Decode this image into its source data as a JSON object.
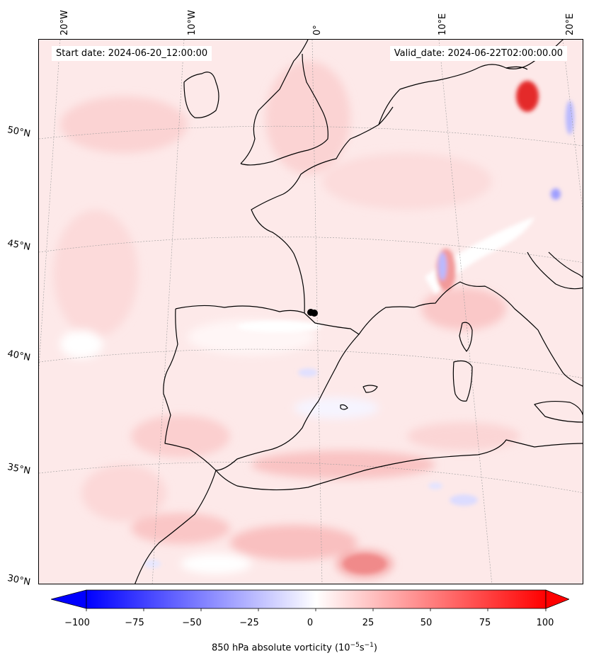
{
  "header": {
    "start_date": "Start date: 2024-06-20_12:00:00",
    "valid_date": "Valid_date: 2024-06-22T02:00:00.00"
  },
  "gridlines": {
    "longitude_labels": [
      "20°W",
      "10°W",
      "0°",
      "10°E",
      "20°E"
    ],
    "latitude_labels": [
      "50°N",
      "45°N",
      "40°N",
      "35°N",
      "30°N"
    ]
  },
  "colorbar": {
    "title_main": "850 hPa absolute vorticity (10",
    "title_exp1": "−5",
    "title_mid": "s",
    "title_exp2": "−1",
    "title_end": ")",
    "ticks": [
      "−100",
      "−75",
      "−50",
      "−25",
      "0",
      "25",
      "50",
      "75",
      "100"
    ],
    "min": -100,
    "max": 100,
    "extend": "both",
    "colormap": "bwr",
    "colors": {
      "negative": "#0000ff",
      "zero": "#ffffff",
      "positive": "#ff0000"
    }
  },
  "map": {
    "projection": "Lambert conformal",
    "variable": "850 hPa absolute vorticity",
    "coastline_color": "#000000",
    "marker_color": "#000000"
  }
}
